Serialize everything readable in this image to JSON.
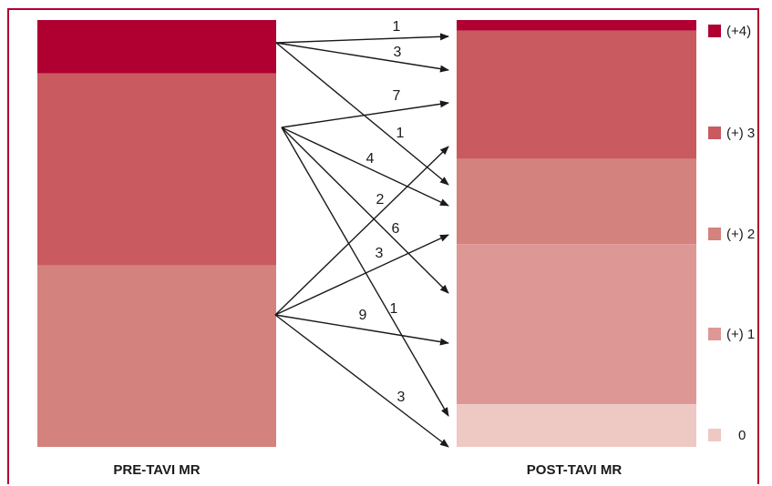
{
  "chart_data": {
    "type": "flow-stacked-bar",
    "categories": [
      "PRE-TAVI MR",
      "POST-TAVI MR"
    ],
    "grades": [
      "(+4)",
      "(+) 3",
      "(+) 2",
      "(+) 1",
      "0"
    ],
    "colors": {
      "(+4)": "#b00031",
      "(+) 3": "#c85a60",
      "(+) 2": "#d4827d",
      "(+) 1": "#dd9895",
      "0": "#eec8c2",
      "frame": "#b00031",
      "arrow": "#1a1a1a"
    },
    "series": [
      {
        "name": "PRE-TAVI MR",
        "values": {
          "(+4)": 5,
          "(+) 3": 18,
          "(+) 2": 17,
          "(+) 1": 0,
          "0": 0
        }
      },
      {
        "name": "POST-TAVI MR",
        "values": {
          "(+4)": 1,
          "(+) 3": 12,
          "(+) 2": 8,
          "(+) 1": 15,
          "0": 4
        }
      }
    ],
    "flows": [
      {
        "from": "(+4)",
        "to": "(+4)",
        "value": "1"
      },
      {
        "from": "(+4)",
        "to": "(+) 3",
        "value": "3"
      },
      {
        "from": "(+) 3",
        "to": "(+) 3",
        "value": "7"
      },
      {
        "from": "(+4)",
        "to": "(+) 2",
        "value": "1"
      },
      {
        "from": "(+) 3",
        "to": "(+) 2",
        "value": "4"
      },
      {
        "from": "(+) 2",
        "to": "(+) 3",
        "value": "2"
      },
      {
        "from": "(+) 3",
        "to": "(+) 1",
        "value": "6"
      },
      {
        "from": "(+) 2",
        "to": "(+) 2",
        "value": "3"
      },
      {
        "from": "(+) 3",
        "to": "0",
        "value": "1"
      },
      {
        "from": "(+) 2",
        "to": "(+) 1",
        "value": "9"
      },
      {
        "from": "(+) 2",
        "to": "0",
        "value": "3"
      }
    ],
    "legend": [
      "(+4)",
      "(+) 3",
      "(+) 2",
      "(+) 1",
      "0"
    ]
  }
}
